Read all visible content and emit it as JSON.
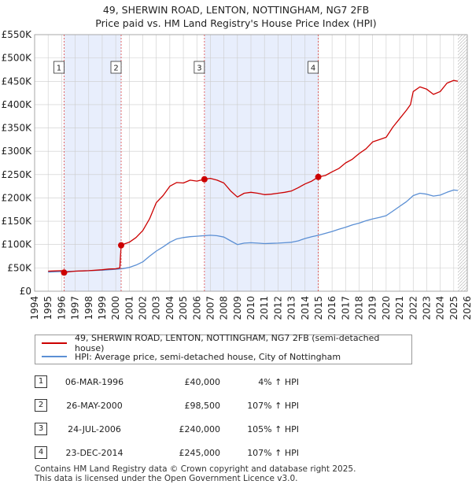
{
  "chart_data": {
    "type": "line",
    "title": "49, SHERWIN ROAD, LENTON, NOTTINGHAM, NG7 2FB",
    "subtitle": "Price paid vs. HM Land Registry's House Price Index (HPI)",
    "xlabel": "",
    "ylabel": "",
    "xlim": [
      1994,
      2026
    ],
    "ylim": [
      0,
      550000
    ],
    "grid": true,
    "x_ticks": [
      "1994",
      "1995",
      "1996",
      "1997",
      "1998",
      "1999",
      "2000",
      "2001",
      "2002",
      "2003",
      "2004",
      "2005",
      "2006",
      "2007",
      "2008",
      "2009",
      "2010",
      "2011",
      "2012",
      "2013",
      "2014",
      "2015",
      "2016",
      "2017",
      "2018",
      "2019",
      "2020",
      "2021",
      "2022",
      "2023",
      "2024",
      "2025",
      "2026"
    ],
    "y_ticks": [
      {
        "value": 0,
        "label": "£0"
      },
      {
        "value": 50000,
        "label": "£50K"
      },
      {
        "value": 100000,
        "label": "£100K"
      },
      {
        "value": 150000,
        "label": "£150K"
      },
      {
        "value": 200000,
        "label": "£200K"
      },
      {
        "value": 250000,
        "label": "£250K"
      },
      {
        "value": 300000,
        "label": "£300K"
      },
      {
        "value": 350000,
        "label": "£350K"
      },
      {
        "value": 400000,
        "label": "£400K"
      },
      {
        "value": 450000,
        "label": "£450K"
      },
      {
        "value": 500000,
        "label": "£500K"
      },
      {
        "value": 550000,
        "label": "£550K"
      }
    ],
    "series": [
      {
        "name": "49, SHERWIN ROAD, LENTON, NOTTINGHAM, NG7 2FB (semi-detached house)",
        "color": "#cc0000",
        "x": [
          1995.0,
          1995.5,
          1996.0,
          1996.18,
          1996.5,
          1997.0,
          1997.5,
          1998.0,
          1998.5,
          1999.0,
          1999.5,
          2000.0,
          2000.3,
          2000.4,
          2000.6,
          2001.0,
          2001.5,
          2002.0,
          2002.5,
          2003.0,
          2003.5,
          2004.0,
          2004.5,
          2005.0,
          2005.5,
          2006.0,
          2006.56,
          2007.0,
          2007.5,
          2008.0,
          2008.5,
          2009.0,
          2009.5,
          2010.0,
          2010.5,
          2011.0,
          2011.5,
          2012.0,
          2012.5,
          2013.0,
          2013.5,
          2014.0,
          2014.5,
          2014.98,
          2015.5,
          2016.0,
          2016.5,
          2017.0,
          2017.5,
          2018.0,
          2018.5,
          2019.0,
          2019.5,
          2020.0,
          2020.5,
          2021.0,
          2021.5,
          2021.8,
          2022.0,
          2022.5,
          2023.0,
          2023.5,
          2024.0,
          2024.5,
          2025.0,
          2025.3
        ],
        "y": [
          43000,
          43500,
          44000,
          40000,
          41500,
          43000,
          43500,
          44000,
          45000,
          46000,
          47500,
          48000,
          50000,
          98500,
          101000,
          105000,
          115000,
          130000,
          155000,
          190000,
          205000,
          225000,
          233000,
          232000,
          238000,
          236000,
          240000,
          242000,
          238000,
          232000,
          215000,
          202000,
          210000,
          212000,
          210000,
          207000,
          208000,
          210000,
          212000,
          215000,
          222000,
          230000,
          236000,
          245000,
          248000,
          256000,
          263000,
          275000,
          283000,
          295000,
          305000,
          320000,
          325000,
          330000,
          352000,
          370000,
          388000,
          400000,
          428000,
          438000,
          433000,
          422000,
          428000,
          446000,
          452000,
          450000
        ]
      },
      {
        "name": "HPI: Average price, semi-detached house, City of Nottingham",
        "color": "#5b8fd4",
        "x": [
          1995.0,
          1995.5,
          1996.0,
          1996.5,
          1997.0,
          1997.5,
          1998.0,
          1998.5,
          1999.0,
          1999.5,
          2000.0,
          2000.5,
          2001.0,
          2001.5,
          2002.0,
          2002.5,
          2003.0,
          2003.5,
          2004.0,
          2004.5,
          2005.0,
          2005.5,
          2006.0,
          2006.5,
          2007.0,
          2007.5,
          2008.0,
          2008.5,
          2009.0,
          2009.5,
          2010.0,
          2010.5,
          2011.0,
          2011.5,
          2012.0,
          2012.5,
          2013.0,
          2013.5,
          2014.0,
          2014.5,
          2015.0,
          2015.5,
          2016.0,
          2016.5,
          2017.0,
          2017.5,
          2018.0,
          2018.5,
          2019.0,
          2019.5,
          2020.0,
          2020.5,
          2021.0,
          2021.5,
          2022.0,
          2022.5,
          2023.0,
          2023.5,
          2024.0,
          2024.5,
          2025.0,
          2025.3
        ],
        "y": [
          41000,
          41500,
          42000,
          42500,
          43000,
          43500,
          44000,
          44500,
          45000,
          46000,
          47000,
          48500,
          51000,
          56000,
          63000,
          75000,
          86000,
          95000,
          105000,
          112000,
          115000,
          117000,
          118000,
          119000,
          120000,
          119000,
          116000,
          108000,
          100000,
          103000,
          104000,
          103000,
          102000,
          102500,
          103000,
          104000,
          105000,
          108000,
          113000,
          117000,
          120000,
          124000,
          128000,
          133000,
          137000,
          142000,
          146000,
          151000,
          155000,
          158000,
          162000,
          172000,
          182000,
          192000,
          205000,
          210000,
          208000,
          204000,
          206000,
          212000,
          217000,
          216000
        ]
      }
    ],
    "markers": [
      {
        "label": "1",
        "x": 1996.18,
        "y": 40000
      },
      {
        "label": "2",
        "x": 2000.4,
        "y": 98500
      },
      {
        "label": "3",
        "x": 2006.56,
        "y": 240000
      },
      {
        "label": "4",
        "x": 2014.98,
        "y": 245000
      }
    ],
    "shaded_ranges": [
      [
        1996.18,
        2000.4
      ],
      [
        2006.56,
        2014.98
      ]
    ]
  },
  "legend": {
    "property_label": "49, SHERWIN ROAD, LENTON, NOTTINGHAM, NG7 2FB (semi-detached house)",
    "hpi_label": "HPI: Average price, semi-detached house, City of Nottingham",
    "property_color": "#cc0000",
    "hpi_color": "#5b8fd4"
  },
  "sales": [
    {
      "num": "1",
      "date": "06-MAR-1996",
      "price": "£40,000",
      "hpi": "4% ↑ HPI"
    },
    {
      "num": "2",
      "date": "26-MAY-2000",
      "price": "£98,500",
      "hpi": "107% ↑ HPI"
    },
    {
      "num": "3",
      "date": "24-JUL-2006",
      "price": "£240,000",
      "hpi": "105% ↑ HPI"
    },
    {
      "num": "4",
      "date": "23-DEC-2014",
      "price": "£245,000",
      "hpi": "107% ↑ HPI"
    }
  ],
  "footer": {
    "line1": "Contains HM Land Registry data © Crown copyright and database right 2025.",
    "line2": "This data is licensed under the Open Government Licence v3.0."
  }
}
